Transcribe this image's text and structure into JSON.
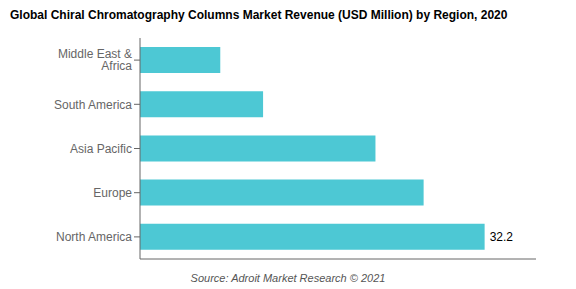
{
  "chart_data": {
    "type": "bar",
    "title": "Global Chiral Chromatography Columns Market Revenue (USD Million) by Region, 2020",
    "categories": [
      "North America",
      "Europe",
      "Asia Pacific",
      "South America",
      "Middle East & Africa"
    ],
    "values": [
      32.2,
      26.5,
      22.0,
      11.5,
      7.5
    ],
    "value_labels": [
      "32.2",
      null,
      null,
      null,
      null
    ],
    "data_labels": true,
    "color": "#4DC8D4",
    "orientation": "horizontal",
    "xlim": [
      0,
      37
    ],
    "tick_labels": "y",
    "grid": false,
    "annotations": [
      "Source: Adroit Market Research © 2021"
    ]
  }
}
